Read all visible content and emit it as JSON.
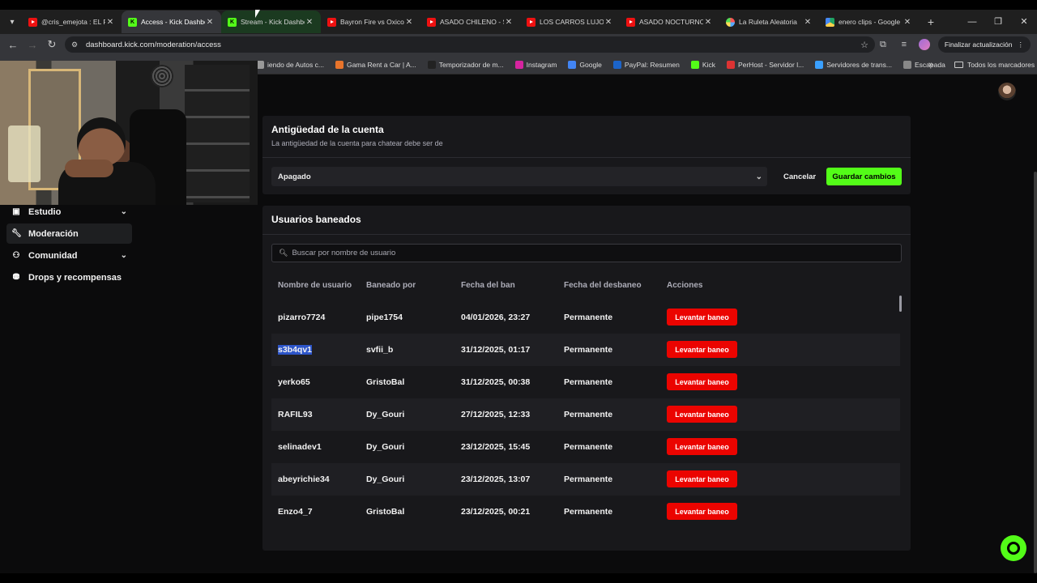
{
  "browser": {
    "tabs": [
      {
        "title": "@cris_emejota : EL RE",
        "favicon": "youtube-icon",
        "state": "normal"
      },
      {
        "title": "Access - Kick Dashboard",
        "favicon": "kick-icon",
        "state": "active"
      },
      {
        "title": "Stream - Kick Dashboard",
        "favicon": "kick-icon",
        "state": "green"
      },
      {
        "title": "Bayron Fire vs Oxicor",
        "favicon": "youtube-icon",
        "state": "normal"
      },
      {
        "title": "ASADO CHILENO - SI",
        "favicon": "youtube-icon",
        "state": "normal"
      },
      {
        "title": "LOS CARROS LUJOSO",
        "favicon": "youtube-icon",
        "state": "normal"
      },
      {
        "title": "ASADO NOCTURNO",
        "favicon": "youtube-icon",
        "state": "normal"
      },
      {
        "title": "La Ruleta Aleatoria",
        "favicon": "ruleta-icon",
        "state": "normal"
      },
      {
        "title": "enero clips - Google",
        "favicon": "gdrive-icon",
        "state": "normal"
      }
    ],
    "url": "dashboard.kick.com/moderation/access",
    "update_label": "Finalizar actualización",
    "bookmarks": [
      {
        "label": "iendo de Autos c...",
        "color": "#999999"
      },
      {
        "label": "Gama Rent a Car | A...",
        "color": "#e8742b"
      },
      {
        "label": "Temporizador de m...",
        "color": "#222222"
      },
      {
        "label": "Instagram",
        "color": "#d6249f"
      },
      {
        "label": "Google",
        "color": "#4285f4"
      },
      {
        "label": "PayPal: Resumen",
        "color": "#1c64c9"
      },
      {
        "label": "Kick",
        "color": "#53fc18"
      },
      {
        "label": "PerHost - Servidor l...",
        "color": "#d33"
      },
      {
        "label": "Servidores de trans...",
        "color": "#3aa0ff"
      },
      {
        "label": "Escapada",
        "color": "#888888"
      }
    ],
    "bookmarks_all": "Todos los marcadores"
  },
  "sidebar": {
    "items": [
      {
        "label": "Estudio",
        "icon": "studio-icon",
        "expandable": true,
        "active": false
      },
      {
        "label": "Moderación",
        "icon": "wrench-icon",
        "expandable": false,
        "active": true
      },
      {
        "label": "Comunidad",
        "icon": "community-icon",
        "expandable": true,
        "active": false
      },
      {
        "label": "Drops y recompensas",
        "icon": "drops-icon",
        "expandable": false,
        "active": false
      }
    ]
  },
  "account_age": {
    "title": "Antigüedad de la cuenta",
    "subtitle": "La antigüedad de la cuenta para chatear debe ser de",
    "selected": "Apagado",
    "cancel_label": "Cancelar",
    "save_label": "Guardar cambios"
  },
  "banned_users": {
    "title": "Usuarios baneados",
    "search_placeholder": "Buscar por nombre de usuario",
    "columns": [
      "Nombre de usuario",
      "Baneado por",
      "Fecha del ban",
      "Fecha del desbaneo",
      "Acciones"
    ],
    "action_label": "Levantar baneo",
    "rows": [
      {
        "user": "pizarro7724",
        "banned_by": "pipe1754",
        "ban_date": "04/01/2026, 23:27",
        "unban": "Permanente",
        "selected": false
      },
      {
        "user": "s3b4qv1",
        "banned_by": "svfii_b",
        "ban_date": "31/12/2025, 01:17",
        "unban": "Permanente",
        "selected": true
      },
      {
        "user": "yerko65",
        "banned_by": "GristoBal",
        "ban_date": "31/12/2025, 00:38",
        "unban": "Permanente",
        "selected": false
      },
      {
        "user": "RAFIL93",
        "banned_by": "Dy_Gouri",
        "ban_date": "27/12/2025, 12:33",
        "unban": "Permanente",
        "selected": false
      },
      {
        "user": "selinadev1",
        "banned_by": "Dy_Gouri",
        "ban_date": "23/12/2025, 15:45",
        "unban": "Permanente",
        "selected": false
      },
      {
        "user": "abeyrichie34",
        "banned_by": "Dy_Gouri",
        "ban_date": "23/12/2025, 13:07",
        "unban": "Permanente",
        "selected": false
      },
      {
        "user": "Enzo4_7",
        "banned_by": "GristoBal",
        "ban_date": "23/12/2025, 00:21",
        "unban": "Permanente",
        "selected": false
      }
    ]
  },
  "colors": {
    "accent": "#53fc18",
    "danger": "#eb0400",
    "panel": "#18181b"
  }
}
